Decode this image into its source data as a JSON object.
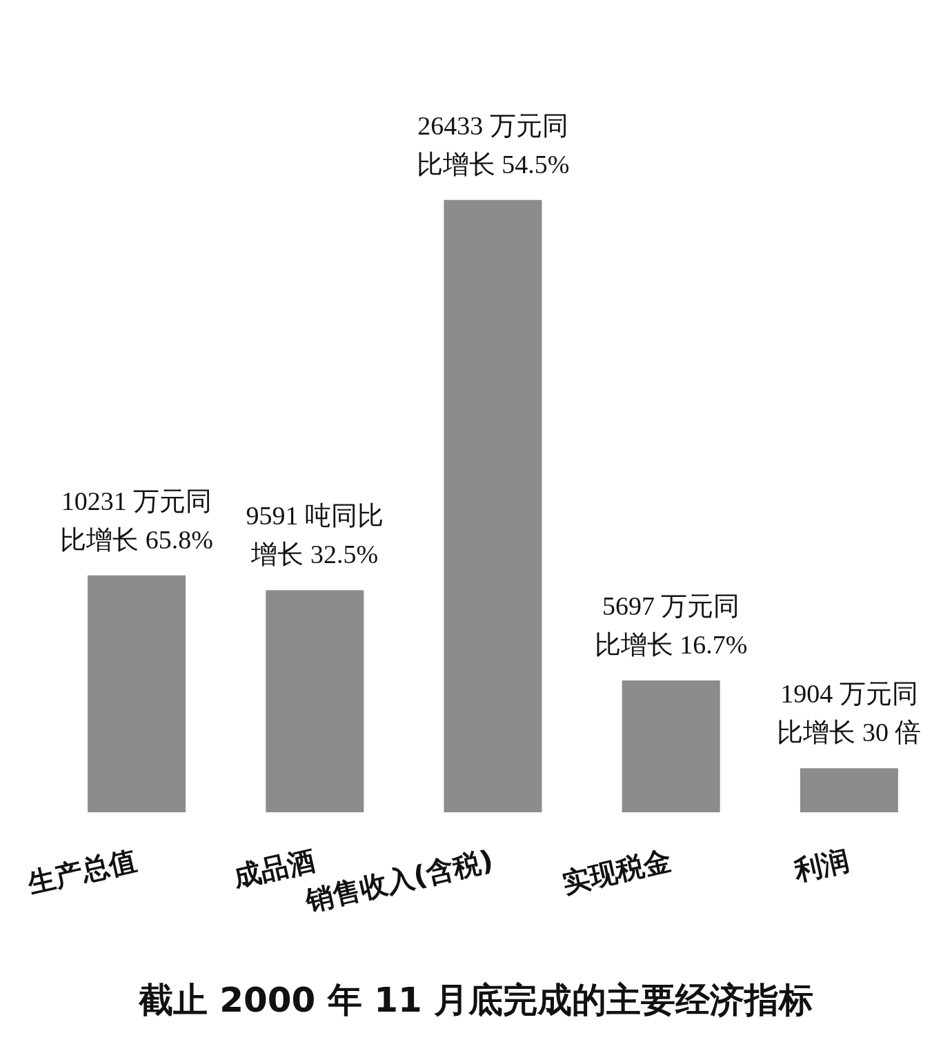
{
  "chart_data": {
    "type": "bar",
    "title": "截止 2000 年 11 月底完成的主要经济指标",
    "categories": [
      "生产总值",
      "成品酒",
      "销售收入(含税)",
      "实现税金",
      "利润"
    ],
    "values": [
      10231,
      9591,
      26433,
      5697,
      1904
    ],
    "value_labels": [
      "10231 万元同比增长 65.8%",
      "9591 吨同比增长 32.5%",
      "26433 万元同比增长 54.5%",
      "5697 万元同比增长 16.7%",
      "1904 万元同比增长 30 倍"
    ],
    "color": "#8c8c8c"
  }
}
